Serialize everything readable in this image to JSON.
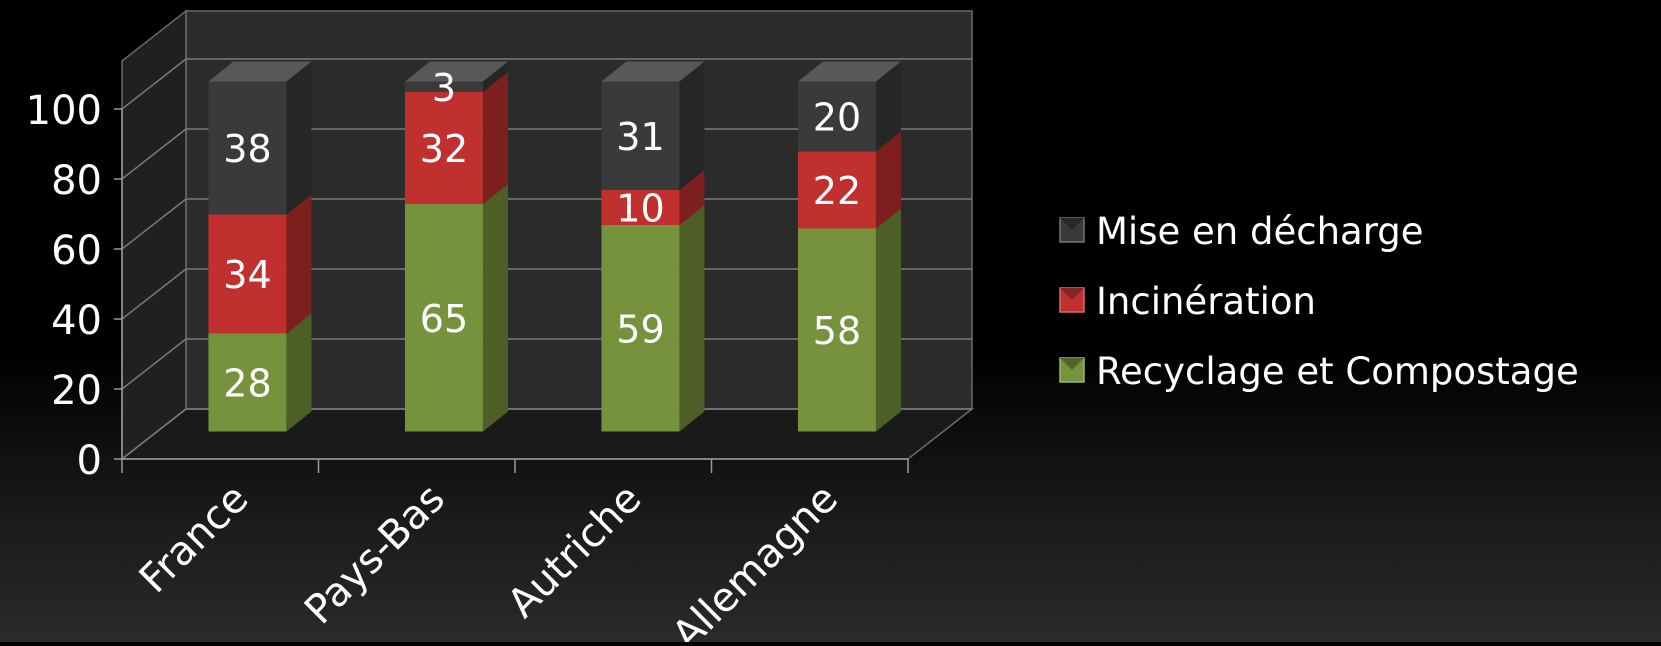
{
  "chart_data": {
    "type": "bar",
    "stacked": true,
    "three_d": true,
    "categories": [
      "France",
      "Pays-Bas",
      "Autriche",
      "Allemagne"
    ],
    "series": [
      {
        "name": "Recyclage et Compostage",
        "values": [
          28,
          65,
          59,
          58
        ],
        "color": "#76923c"
      },
      {
        "name": "Incinération",
        "values": [
          34,
          32,
          10,
          22
        ],
        "color": "#c0302f"
      },
      {
        "name": "Mise en décharge",
        "values": [
          38,
          3,
          31,
          20
        ],
        "color": "#3a3a3a"
      }
    ],
    "legend_order": [
      "Mise en décharge",
      "Incinération",
      "Recyclage et Compostage"
    ],
    "y_ticks": [
      "0",
      "20",
      "40",
      "60",
      "80",
      "100"
    ],
    "ylim": [
      0,
      100
    ],
    "grid": true,
    "legend_position": "right",
    "title": "",
    "xlabel": "",
    "ylabel": ""
  }
}
